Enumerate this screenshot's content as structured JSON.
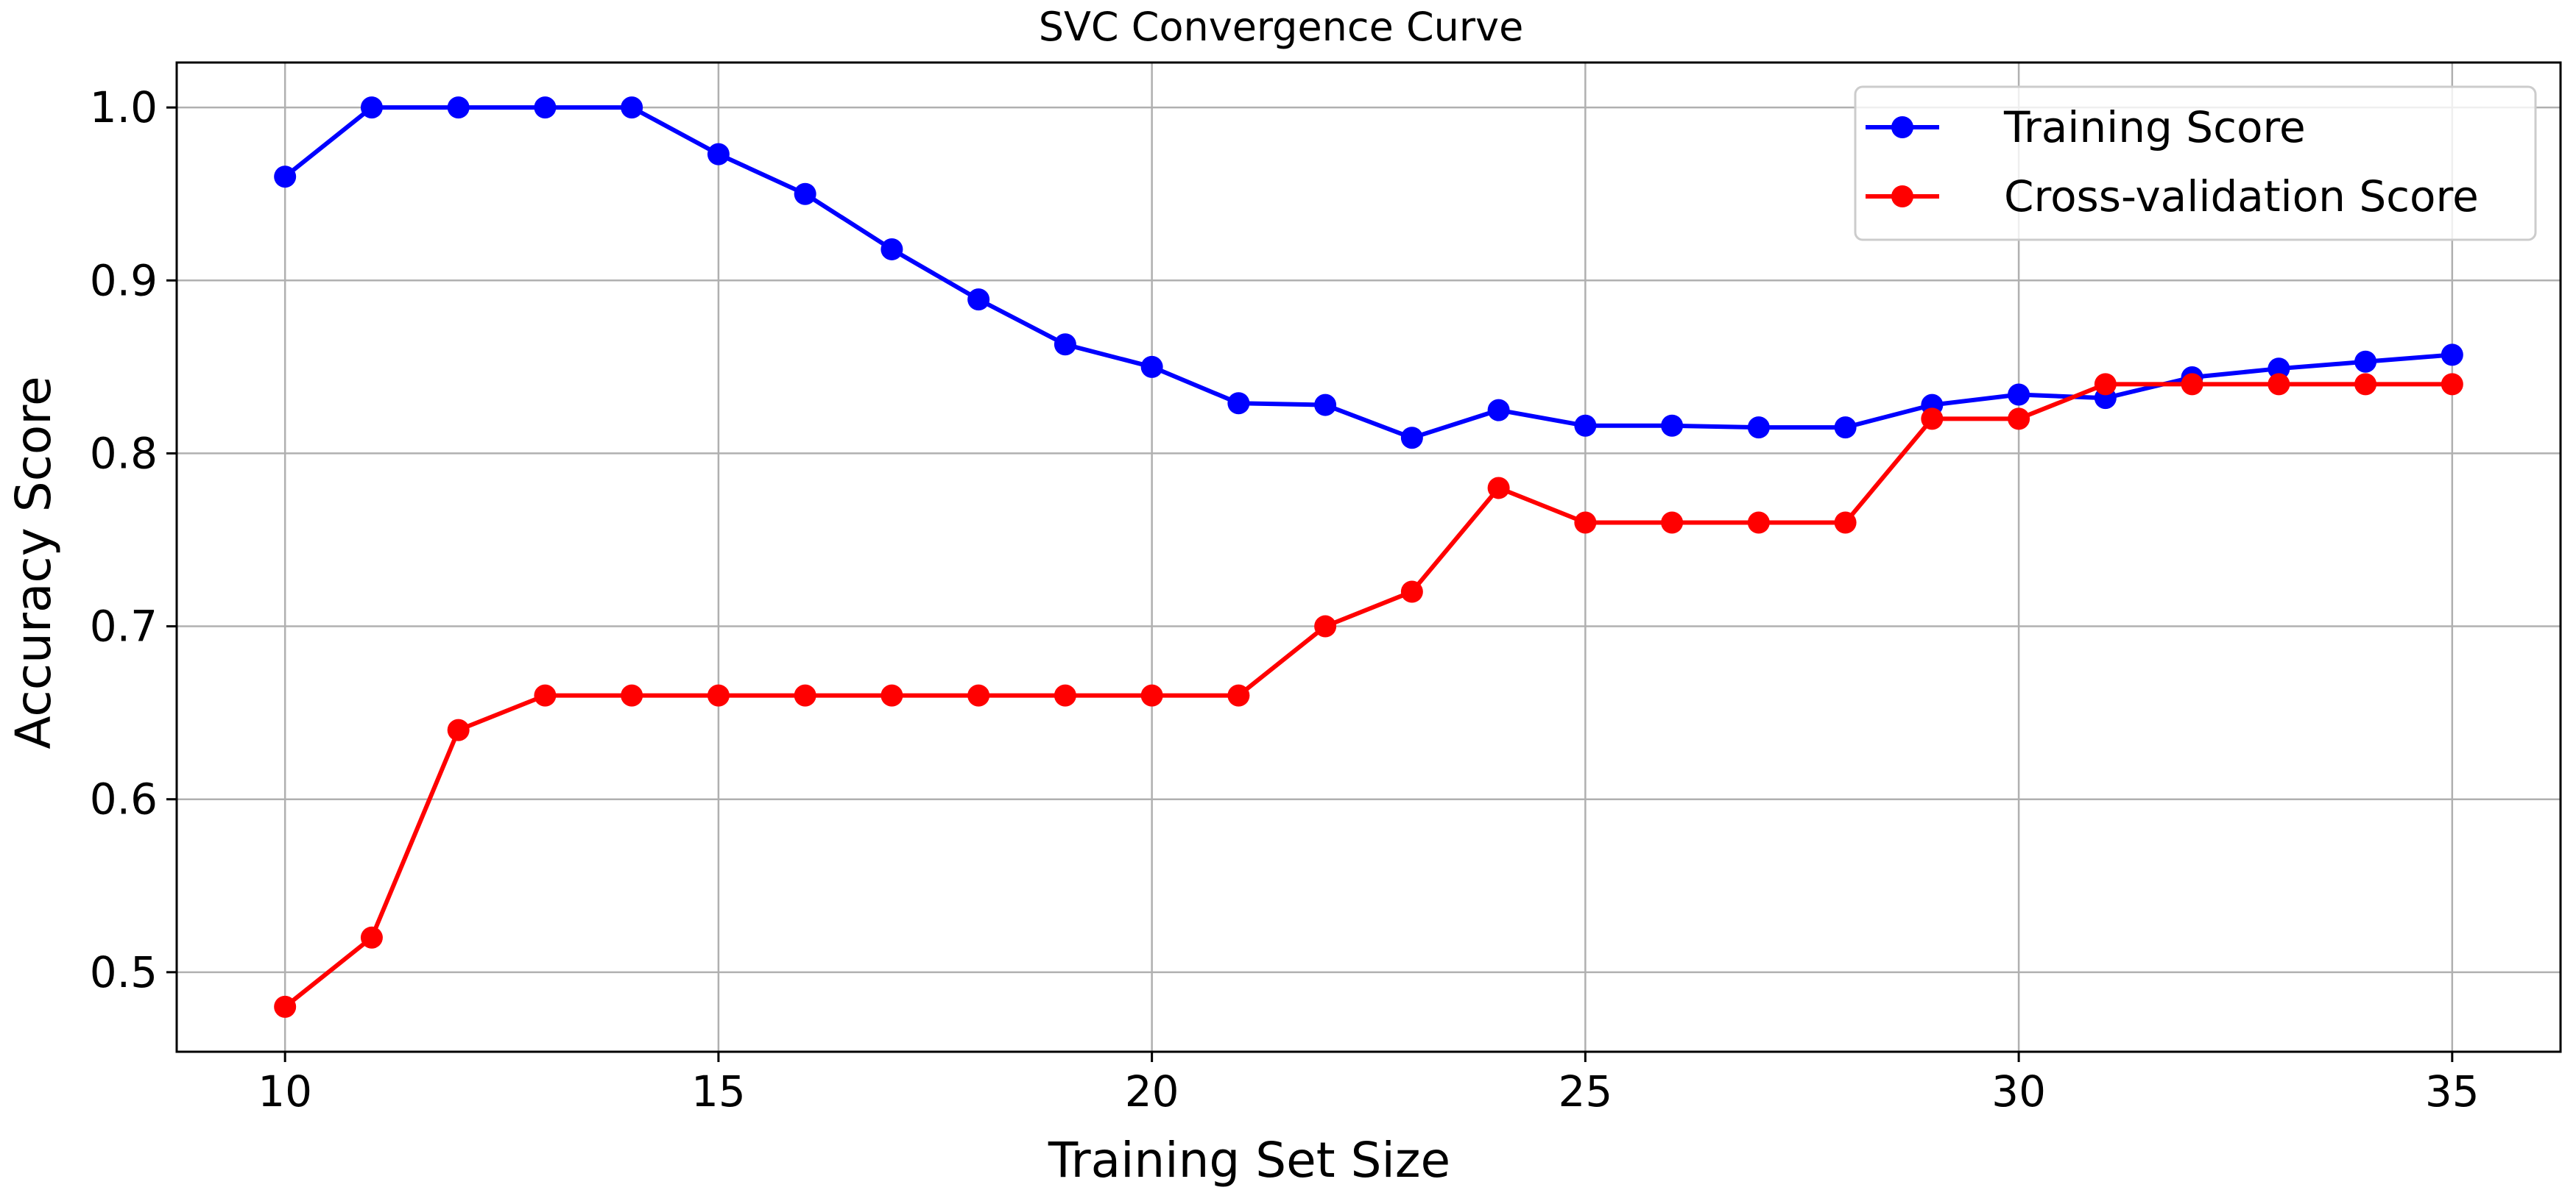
{
  "chart_data": {
    "type": "line",
    "title": "SVC Convergence Curve",
    "xlabel": "Training Set Size",
    "ylabel": "Accuracy Score",
    "xlim": [
      8.75,
      36.25
    ],
    "ylim": [
      0.454,
      1.026
    ],
    "xticks": [
      10,
      15,
      20,
      25,
      30,
      35
    ],
    "yticks": [
      0.5,
      0.6,
      0.7,
      0.8,
      0.9,
      1.0
    ],
    "xtick_labels": [
      "10",
      "15",
      "20",
      "25",
      "30",
      "35"
    ],
    "ytick_labels": [
      "0.5",
      "0.6",
      "0.7",
      "0.8",
      "0.9",
      "1.0"
    ],
    "grid": true,
    "legend_position": "top-right",
    "x": [
      10,
      11,
      12,
      13,
      14,
      15,
      16,
      17,
      18,
      19,
      20,
      21,
      22,
      23,
      24,
      25,
      26,
      27,
      28,
      29,
      30,
      31,
      32,
      33,
      34,
      35
    ],
    "series": [
      {
        "name": "Training Score",
        "color": "#0000ff",
        "values": [
          0.96,
          1.0,
          1.0,
          1.0,
          1.0,
          0.973,
          0.95,
          0.918,
          0.889,
          0.863,
          0.85,
          0.829,
          0.828,
          0.809,
          0.825,
          0.816,
          0.816,
          0.815,
          0.815,
          0.828,
          0.834,
          0.832,
          0.844,
          0.849,
          0.853,
          0.857
        ]
      },
      {
        "name": "Cross-validation Score",
        "color": "#ff0000",
        "values": [
          0.48,
          0.52,
          0.64,
          0.66,
          0.66,
          0.66,
          0.66,
          0.66,
          0.66,
          0.66,
          0.66,
          0.66,
          0.7,
          0.72,
          0.78,
          0.76,
          0.76,
          0.76,
          0.76,
          0.82,
          0.82,
          0.84,
          0.84,
          0.84,
          0.84,
          0.84
        ]
      }
    ]
  }
}
